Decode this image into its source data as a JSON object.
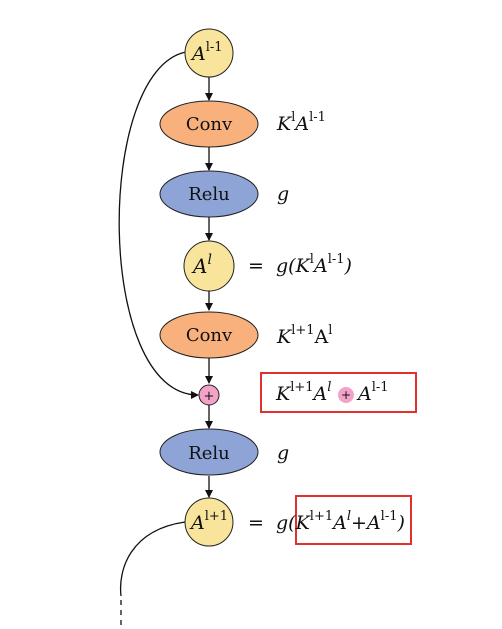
{
  "colors": {
    "a_node_fill": "#f8e49a",
    "a_node_stroke": "#222222",
    "conv_fill": "#f8b07c",
    "relu_fill": "#8ea4d6",
    "plus_fill": "#f3a3c8",
    "highlight_box": "#e0312f",
    "arrow": "#111111"
  },
  "nodes": {
    "a_prev": {
      "base": "A",
      "sup": "l-1"
    },
    "conv1": "Conv",
    "relu1": "Relu",
    "a_l": {
      "base": "A",
      "sup": "l"
    },
    "conv2": "Conv",
    "plus": "+",
    "relu2": "Relu",
    "a_next": {
      "base": "A",
      "sup": "l+1"
    }
  },
  "annotations": {
    "conv1": {
      "k": "K",
      "k_sup": "l",
      "a": "A",
      "a_sup": "l-1"
    },
    "relu1": "g",
    "a_l": {
      "eq": "=",
      "g": "g(",
      "k": "K",
      "k_sup": "l",
      "a": "A",
      "a_sup": "l-1",
      "close": ")"
    },
    "conv2": {
      "k": "K",
      "k_sup": "l+1",
      "a": "A",
      "a_sup": "l"
    },
    "plus_box": {
      "k": "K",
      "k_sup": "l+1",
      "a": "A",
      "a_sup": "l",
      "plus": "+",
      "a2": "A",
      "a2_sup": "l-1"
    },
    "relu2": "g",
    "a_next": {
      "eq": "=",
      "g": "g(",
      "k": "K",
      "k_sup": "l+1",
      "a": "A",
      "a_sup": "l",
      "plus": "+",
      "a2": "A",
      "a2_sup": "l-1",
      "close": ")"
    }
  }
}
